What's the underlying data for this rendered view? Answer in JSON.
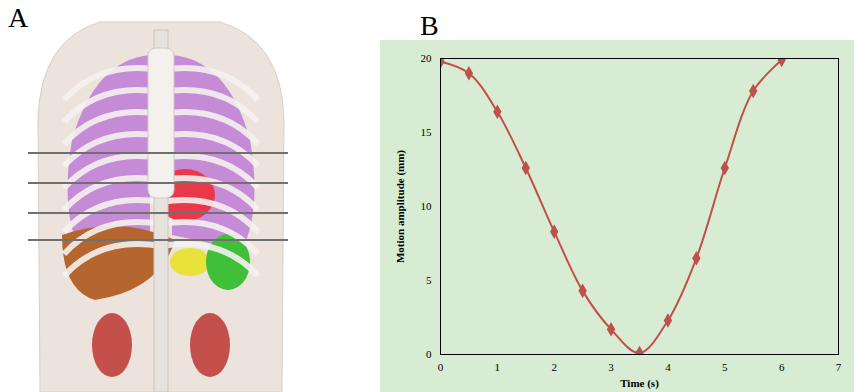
{
  "panel_a": {
    "label": "A"
  },
  "chart_data": {
    "label": "B",
    "type": "line",
    "x": [
      0,
      0.5,
      1,
      1.5,
      2,
      2.5,
      3,
      3.5,
      4,
      4.5,
      5,
      5.5,
      6
    ],
    "values": [
      19.8,
      19.0,
      16.4,
      12.6,
      8.3,
      4.3,
      1.7,
      0.1,
      2.3,
      6.5,
      12.6,
      17.8,
      19.9
    ],
    "x_label": "Time (s)",
    "y_label": "Motion amplitude (mm)",
    "xlim": [
      0,
      7
    ],
    "xticks": [
      0,
      1,
      2,
      3,
      4,
      5,
      6,
      7
    ],
    "ylim": [
      0,
      20
    ],
    "yticks": [
      0,
      5,
      10,
      15,
      20
    ],
    "color": "#c0504d",
    "marker": "diamond",
    "grid": false
  }
}
